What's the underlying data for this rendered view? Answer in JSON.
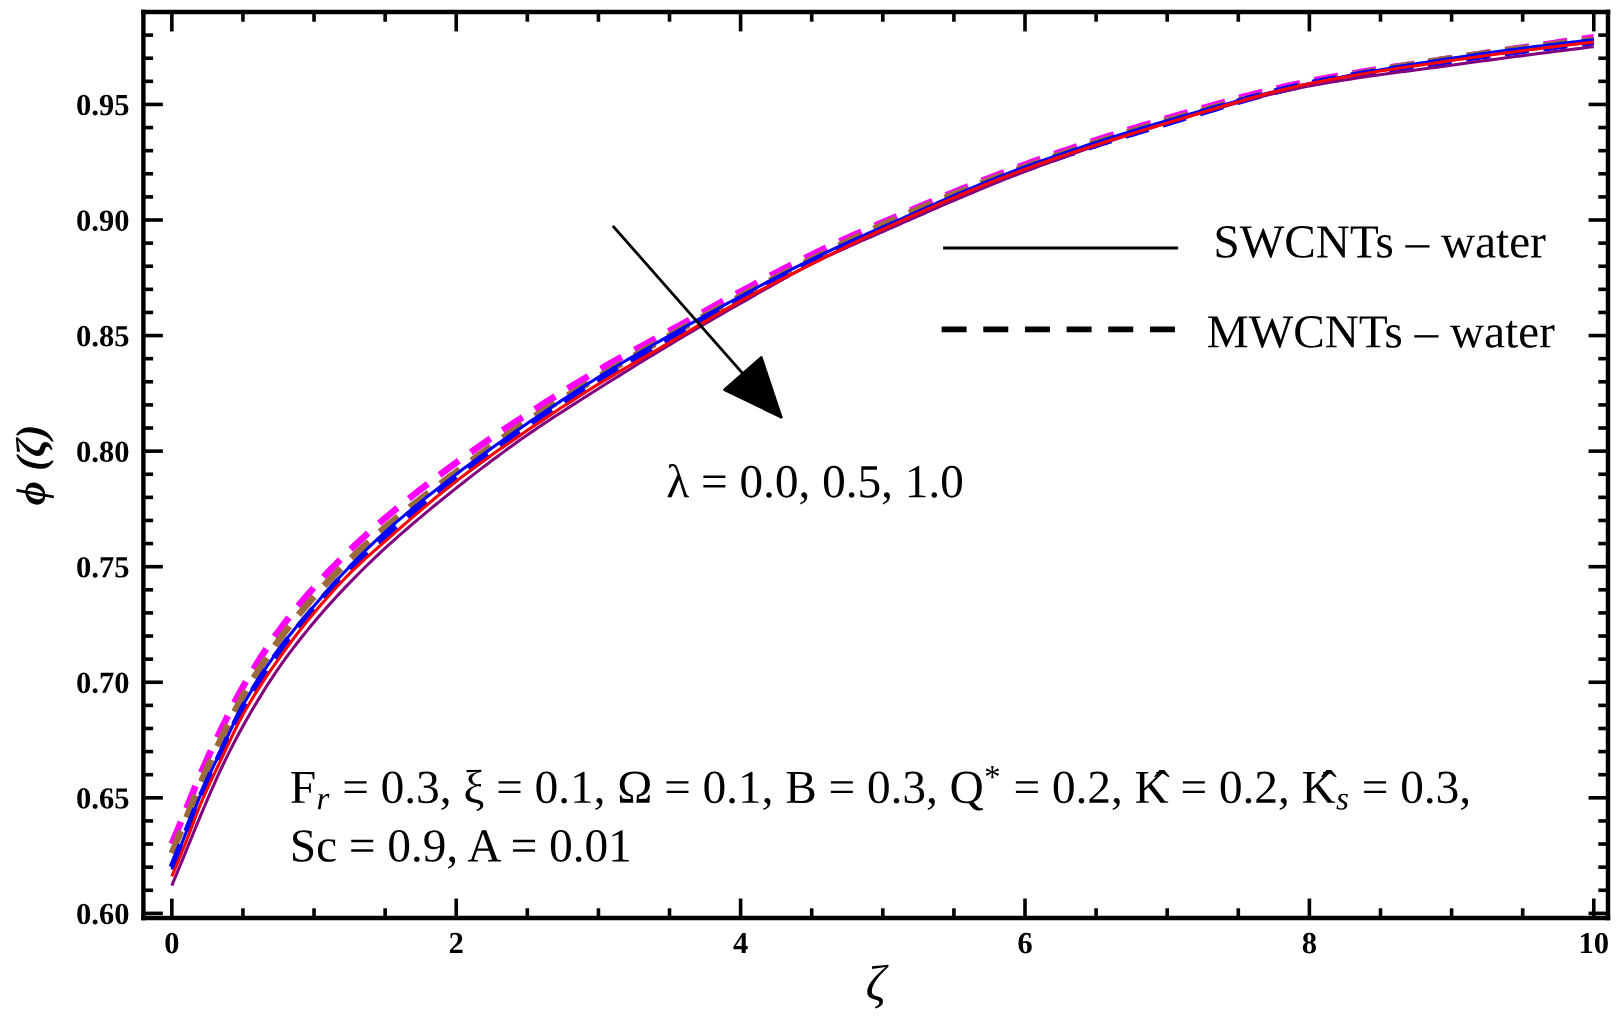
{
  "chart_data": {
    "type": "line",
    "xlabel": "ζ",
    "ylabel": "ϕ (ζ)",
    "x": [
      0,
      0.1,
      0.2,
      0.35,
      0.5,
      0.75,
      1.0,
      1.25,
      1.5,
      2.0,
      2.5,
      3.0,
      3.5,
      4.0,
      4.5,
      5.0,
      6.0,
      7.0,
      8.0,
      9.0,
      10.0
    ],
    "series": [
      {
        "color": "#ff00ff",
        "line_style": "dashed",
        "values": [
          0.63,
          0.645,
          0.66,
          0.68,
          0.698,
          0.722,
          0.741,
          0.757,
          0.771,
          0.795,
          0.816,
          0.835,
          0.852,
          0.869,
          0.885,
          0.899,
          0.924,
          0.944,
          0.96,
          0.97,
          0.979
        ]
      },
      {
        "color": "#9c6b3c",
        "line_style": "dashed",
        "values": [
          0.626,
          0.641,
          0.656,
          0.676,
          0.694,
          0.718,
          0.737,
          0.753,
          0.767,
          0.791,
          0.813,
          0.832,
          0.85,
          0.867,
          0.883,
          0.898,
          0.923,
          0.943,
          0.959,
          0.97,
          0.978
        ]
      },
      {
        "color": "#0000ff",
        "line_style": "dashed",
        "values": [
          0.62,
          0.635,
          0.65,
          0.67,
          0.689,
          0.713,
          0.732,
          0.749,
          0.763,
          0.788,
          0.81,
          0.83,
          0.848,
          0.865,
          0.882,
          0.896,
          0.922,
          0.942,
          0.959,
          0.969,
          0.977
        ]
      },
      {
        "color": "#0000ff",
        "line_style": "solid",
        "values": [
          0.619,
          0.635,
          0.651,
          0.671,
          0.69,
          0.714,
          0.733,
          0.75,
          0.765,
          0.79,
          0.812,
          0.832,
          0.85,
          0.867,
          0.883,
          0.897,
          0.923,
          0.943,
          0.959,
          0.97,
          0.978
        ]
      },
      {
        "color": "#800080",
        "line_style": "solid",
        "values": [
          0.612,
          0.627,
          0.642,
          0.663,
          0.681,
          0.706,
          0.726,
          0.743,
          0.758,
          0.784,
          0.807,
          0.827,
          0.846,
          0.864,
          0.881,
          0.895,
          0.921,
          0.942,
          0.958,
          0.967,
          0.975
        ]
      },
      {
        "color": "#ff0000",
        "line_style": "solid",
        "values": [
          0.616,
          0.631,
          0.647,
          0.667,
          0.686,
          0.71,
          0.73,
          0.747,
          0.761,
          0.787,
          0.809,
          0.829,
          0.847,
          0.865,
          0.881,
          0.896,
          0.922,
          0.942,
          0.959,
          0.969,
          0.977
        ]
      }
    ],
    "xlim": [
      -0.2,
      10.1
    ],
    "xticks": [
      0,
      2,
      4,
      6,
      8,
      10
    ],
    "ylim": [
      0.598,
      0.99
    ],
    "yticks": [
      {
        "value": 0.6,
        "label": "0.60"
      },
      0.65,
      {
        "value": 0.7,
        "label": "0.70"
      },
      0.75,
      {
        "value": 0.8,
        "label": "0.80"
      },
      0.85,
      {
        "value": 0.9,
        "label": "0.90"
      },
      0.95
    ],
    "annotations": [
      "λ = 0.0, 0.5, 1.0",
      "F$_{r}$ = 0.3, ξ = 0.1, Ω = 0.1, B = 0.3, Q$^{*}$ = 0.2, K̂ = 0.2, K̂$_{s}$ = 0.3,",
      "Sc = 0.9, A = 0.01",
      "SWCNTs – water",
      "MWCNTs – water"
    ]
  }
}
